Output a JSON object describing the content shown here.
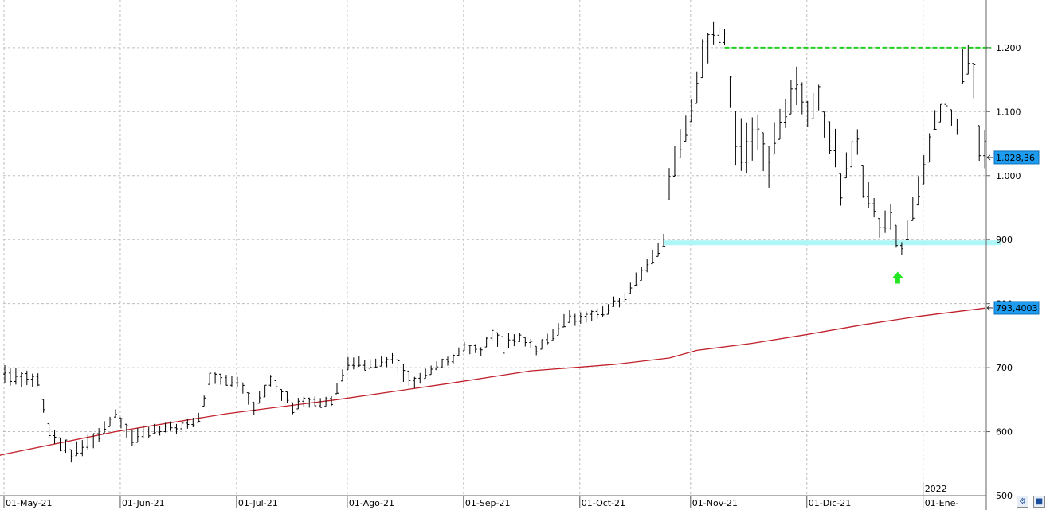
{
  "chart_data": {
    "type": "line",
    "subtype": "ohlc-bar",
    "title": "",
    "xlabel": "",
    "ylabel": "",
    "ylim": [
      500,
      1270
    ],
    "y_ticks": [
      {
        "value": 600,
        "label": "600"
      },
      {
        "value": 700,
        "label": "700"
      },
      {
        "value": 800,
        "label": "800"
      },
      {
        "value": 900,
        "label": "900"
      },
      {
        "value": 1000,
        "label": "1.000"
      },
      {
        "value": 1100,
        "label": "1.100"
      },
      {
        "value": 1200,
        "label": "1.200"
      },
      {
        "value": 500,
        "label": "500"
      }
    ],
    "x_ticks": [
      {
        "index": 0,
        "label": "01-May-21"
      },
      {
        "index": 21,
        "label": "01-Jun-21"
      },
      {
        "index": 42,
        "label": "01-Jul-21"
      },
      {
        "index": 62,
        "label": "01-Ago-21"
      },
      {
        "index": 83,
        "label": "01-Sep-21"
      },
      {
        "index": 104,
        "label": "01-Oct-21"
      },
      {
        "index": 124,
        "label": "01-Nov-21"
      },
      {
        "index": 145,
        "label": "01-Dic-21"
      },
      {
        "index": 166,
        "label": "01-Ene-"
      }
    ],
    "year_marker": {
      "index": 166,
      "label": "2022"
    },
    "anchors": [
      [
        0,
        690,
        28
      ],
      [
        6,
        680,
        20
      ],
      [
        8,
        600,
        22
      ],
      [
        12,
        565,
        20
      ],
      [
        14,
        575,
        25
      ],
      [
        17,
        595,
        22
      ],
      [
        20,
        630,
        12
      ],
      [
        23,
        590,
        25
      ],
      [
        27,
        605,
        15
      ],
      [
        31,
        605,
        15
      ],
      [
        35,
        620,
        15
      ],
      [
        37,
        680,
        18
      ],
      [
        42,
        680,
        16
      ],
      [
        45,
        640,
        20
      ],
      [
        48,
        680,
        18
      ],
      [
        52,
        640,
        18
      ],
      [
        56,
        650,
        15
      ],
      [
        59,
        645,
        15
      ],
      [
        61,
        690,
        18
      ],
      [
        62,
        710,
        20
      ],
      [
        66,
        705,
        14
      ],
      [
        70,
        715,
        16
      ],
      [
        72,
        690,
        28
      ],
      [
        74,
        680,
        18
      ],
      [
        77,
        700,
        14
      ],
      [
        80,
        710,
        14
      ],
      [
        83,
        730,
        14
      ],
      [
        86,
        725,
        14
      ],
      [
        88,
        750,
        16
      ],
      [
        90,
        735,
        28
      ],
      [
        93,
        745,
        14
      ],
      [
        96,
        730,
        14
      ],
      [
        99,
        750,
        18
      ],
      [
        101,
        775,
        20
      ],
      [
        104,
        780,
        18
      ],
      [
        108,
        785,
        16
      ],
      [
        110,
        800,
        16
      ],
      [
        112,
        810,
        14
      ],
      [
        114,
        840,
        20
      ],
      [
        117,
        870,
        22
      ],
      [
        119,
        900,
        20
      ],
      [
        120,
        990,
        50
      ],
      [
        122,
        1050,
        45
      ],
      [
        124,
        1100,
        35
      ],
      [
        125,
        1140,
        50
      ],
      [
        126,
        1180,
        60
      ],
      [
        128,
        1220,
        35
      ],
      [
        130,
        1220,
        25
      ],
      [
        131,
        1130,
        50
      ],
      [
        132,
        1060,
        85
      ],
      [
        134,
        1040,
        80
      ],
      [
        136,
        1070,
        55
      ],
      [
        138,
        1010,
        65
      ],
      [
        139,
        1060,
        50
      ],
      [
        141,
        1100,
        45
      ],
      [
        143,
        1140,
        60
      ],
      [
        145,
        1100,
        40
      ],
      [
        147,
        1120,
        40
      ],
      [
        148,
        1080,
        40
      ],
      [
        150,
        1040,
        60
      ],
      [
        151,
        980,
        50
      ],
      [
        152,
        1020,
        40
      ],
      [
        154,
        1050,
        40
      ],
      [
        155,
        990,
        50
      ],
      [
        157,
        950,
        30
      ],
      [
        158,
        920,
        30
      ],
      [
        160,
        935,
        40
      ],
      [
        161,
        905,
        35
      ],
      [
        162,
        890,
        20
      ],
      [
        163,
        915,
        30
      ],
      [
        165,
        980,
        45
      ],
      [
        167,
        1040,
        45
      ],
      [
        168,
        1090,
        30
      ],
      [
        170,
        1100,
        25
      ],
      [
        172,
        1080,
        25
      ],
      [
        173,
        1170,
        55
      ],
      [
        174,
        1180,
        45
      ],
      [
        175,
        1150,
        55
      ],
      [
        176,
        1050,
        55
      ],
      [
        177,
        1040,
        60
      ]
    ],
    "moving_average": {
      "points": [
        [
          0,
          565
        ],
        [
          20,
          600
        ],
        [
          40,
          628
        ],
        [
          60,
          650
        ],
        [
          80,
          675
        ],
        [
          95,
          695
        ],
        [
          110,
          705
        ],
        [
          120,
          715
        ],
        [
          125,
          727
        ],
        [
          135,
          738
        ],
        [
          145,
          752
        ],
        [
          155,
          767
        ],
        [
          165,
          780
        ],
        [
          177,
          793
        ]
      ]
    },
    "last_price": {
      "value": 1028.36,
      "label": "1.028,36"
    },
    "ma_price": {
      "value": 793.4003,
      "label": "793,4003"
    },
    "resistance": {
      "value": 1200,
      "from": 130,
      "to": 177
    },
    "support": {
      "value": 895,
      "from": 119,
      "to": 180
    },
    "signal_arrow": {
      "index": 162,
      "value": 840,
      "direction": "up"
    },
    "colors": {
      "bars": "#000000",
      "moving_average": "#c0202a",
      "resistance": "#22d022",
      "support": "#aef7f7",
      "arrow": "#22e622",
      "price_tag": "#1e9cf0",
      "grid": "#bdbdbd"
    }
  },
  "toolbar": {
    "tool1_icon": "chart-settings-icon",
    "tool1_glyph": "⚙",
    "tool2_icon": "save-disk-icon",
    "tool2_glyph": "■"
  }
}
